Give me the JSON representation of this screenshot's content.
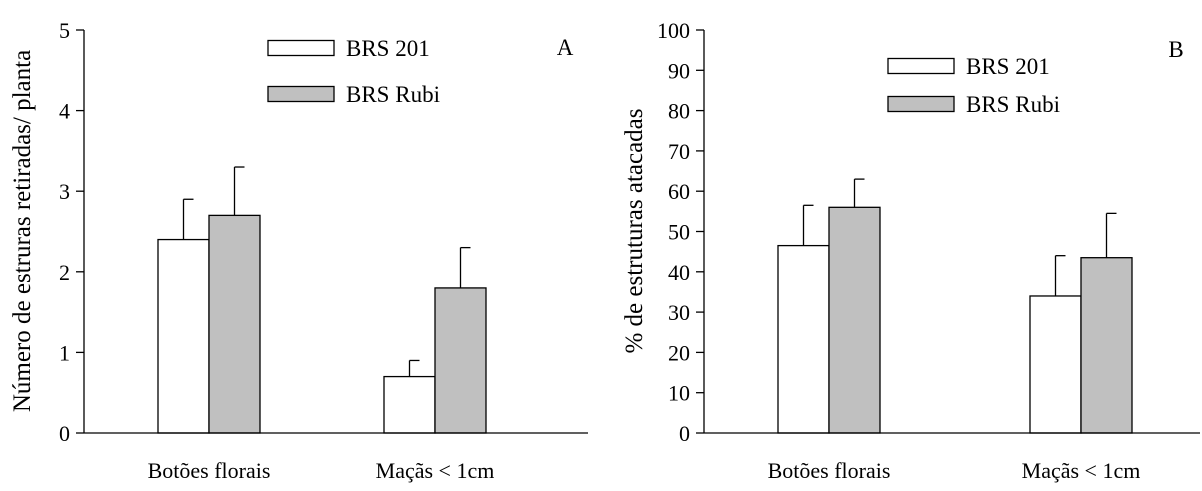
{
  "chart_data": [
    {
      "type": "bar",
      "panel_label": "A",
      "categories": [
        "Botões florais",
        "Maçãs < 1cm"
      ],
      "series": [
        {
          "name": "BRS 201",
          "values": [
            2.4,
            0.7
          ],
          "errors": [
            0.5,
            0.2
          ],
          "color": "#ffffff"
        },
        {
          "name": "BRS Rubi",
          "values": [
            2.7,
            1.8
          ],
          "errors": [
            0.6,
            0.5
          ],
          "color": "#c0c0c0"
        }
      ],
      "title": "",
      "xlabel": "",
      "ylabel": "Número de estruras retiradas/ planta",
      "ylim": [
        0,
        5
      ],
      "yticks": [
        "0",
        "1",
        "2",
        "3",
        "4",
        "5"
      ],
      "grid": false,
      "legend_position": "top-center"
    },
    {
      "type": "bar",
      "panel_label": "B",
      "categories": [
        "Botões florais",
        "Maçãs < 1cm"
      ],
      "series": [
        {
          "name": "BRS 201",
          "values": [
            46.5,
            34
          ],
          "errors": [
            10,
            10
          ],
          "color": "#ffffff"
        },
        {
          "name": "BRS Rubi",
          "values": [
            56,
            43.5
          ],
          "errors": [
            7,
            11
          ],
          "color": "#c0c0c0"
        }
      ],
      "title": "",
      "xlabel": "",
      "ylabel": "% de estruturas atacadas",
      "ylim": [
        0,
        100
      ],
      "yticks": [
        "0",
        "10",
        "20",
        "30",
        "40",
        "50",
        "60",
        "70",
        "80",
        "90",
        "100"
      ],
      "grid": false,
      "legend_position": "top-center"
    }
  ]
}
